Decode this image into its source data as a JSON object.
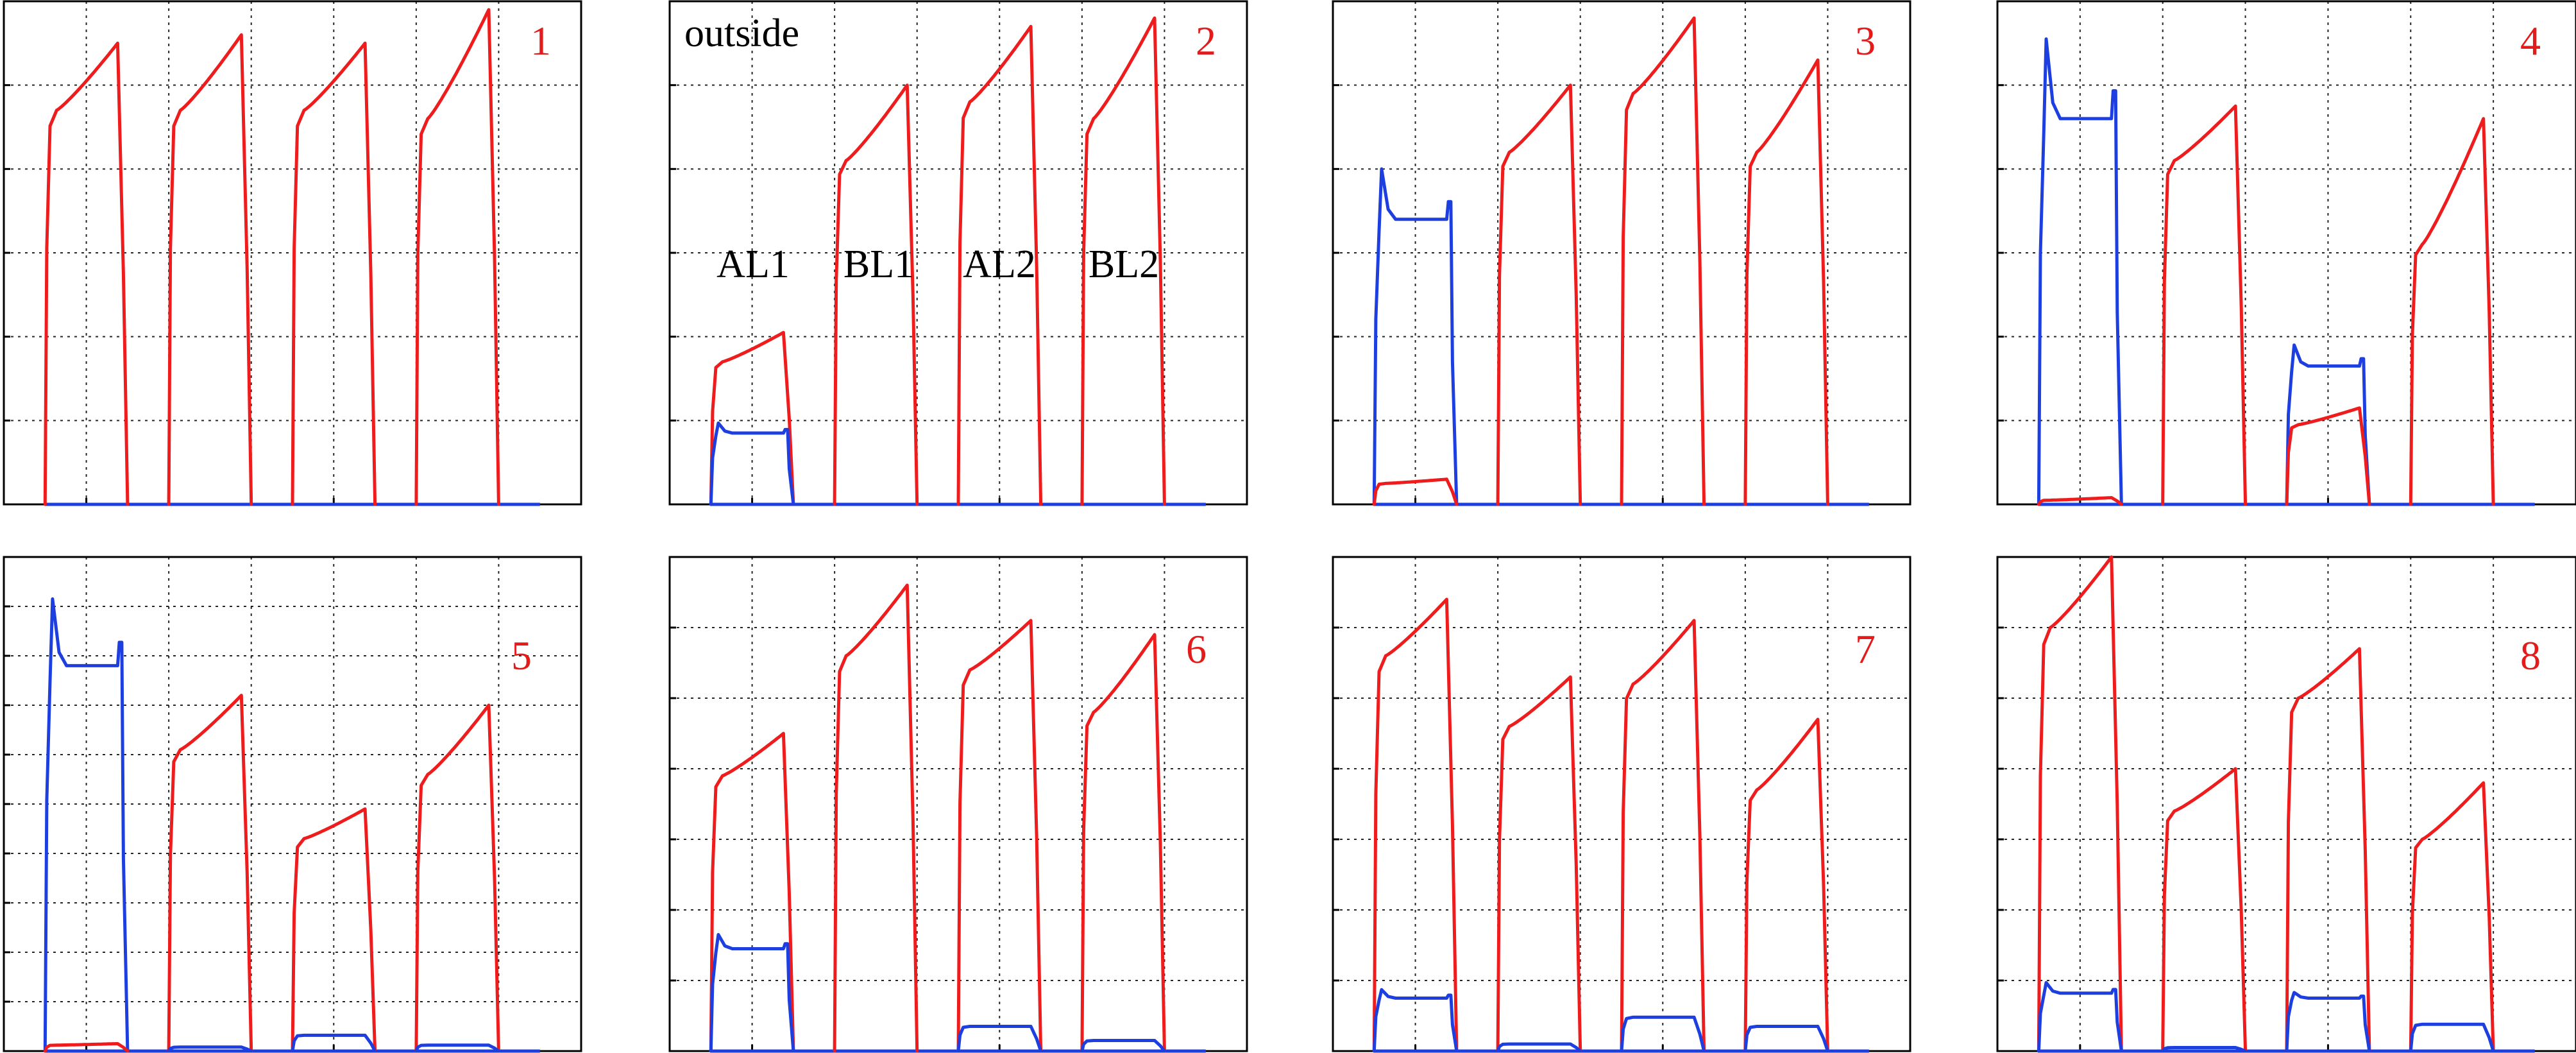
{
  "colors": {
    "red_series": "#ee1c1c",
    "blue_series": "#1d3fe0",
    "panel_number": "#e41b1b",
    "grid": "#000000"
  },
  "chart_data": [
    {
      "type": "line",
      "panel_label": "1",
      "annotations": [],
      "grid": true,
      "xlim": [
        0,
        7
      ],
      "ylim": [
        0,
        6
      ],
      "x_gridlines": [
        1,
        2,
        3,
        4,
        5,
        6
      ],
      "y_gridlines": [
        1,
        2,
        3,
        4,
        5
      ],
      "pulses": [
        {
          "series": "red",
          "x_start": 0.5,
          "x_end": 1.5,
          "level_start": 4.7,
          "level_end": 5.5,
          "overshoot": 0
        },
        {
          "series": "red",
          "x_start": 2.0,
          "x_end": 3.0,
          "level_start": 4.7,
          "level_end": 5.6,
          "overshoot": 0
        },
        {
          "series": "red",
          "x_start": 3.5,
          "x_end": 4.5,
          "level_start": 4.7,
          "level_end": 5.5,
          "overshoot": 0
        },
        {
          "series": "red",
          "x_start": 5.0,
          "x_end": 6.0,
          "level_start": 4.6,
          "level_end": 5.9,
          "overshoot": 0
        }
      ]
    },
    {
      "type": "line",
      "panel_label": "2",
      "grid": true,
      "annotations": [
        {
          "text": "outside",
          "x": 0.2,
          "y": 5.5
        },
        {
          "text": "AL1",
          "x": 1.0,
          "y": 2.8
        },
        {
          "text": "BL1",
          "x": 2.5,
          "y": 2.8
        },
        {
          "text": "AL2",
          "x": 4.0,
          "y": 2.8
        },
        {
          "text": "BL2",
          "x": 5.5,
          "y": 2.8
        }
      ],
      "xlim": [
        0,
        7
      ],
      "ylim": [
        0,
        6
      ],
      "x_gridlines": [
        1,
        2,
        3,
        4,
        5,
        6
      ],
      "y_gridlines": [
        1,
        2,
        3,
        4,
        5
      ],
      "pulses": [
        {
          "series": "red",
          "x_start": 0.5,
          "x_end": 1.5,
          "level_start": 1.7,
          "level_end": 2.05,
          "overshoot": 0
        },
        {
          "series": "blue",
          "x_start": 0.5,
          "x_end": 1.5,
          "level_start": 0.85,
          "level_end": 0.85,
          "overshoot": 0.12
        },
        {
          "series": "red",
          "x_start": 2.0,
          "x_end": 3.0,
          "level_start": 4.1,
          "level_end": 5.0,
          "overshoot": 0
        },
        {
          "series": "red",
          "x_start": 3.5,
          "x_end": 4.5,
          "level_start": 4.8,
          "level_end": 5.7,
          "overshoot": 0
        },
        {
          "series": "red",
          "x_start": 5.0,
          "x_end": 6.0,
          "level_start": 4.6,
          "level_end": 5.8,
          "overshoot": 0
        }
      ]
    },
    {
      "type": "line",
      "panel_label": "3",
      "annotations": [],
      "grid": true,
      "xlim": [
        0,
        7
      ],
      "ylim": [
        0,
        6
      ],
      "x_gridlines": [
        1,
        2,
        3,
        4,
        5,
        6
      ],
      "y_gridlines": [
        1,
        2,
        3,
        4,
        5
      ],
      "pulses": [
        {
          "series": "blue",
          "x_start": 0.5,
          "x_end": 1.5,
          "level_start": 3.4,
          "level_end": 3.4,
          "overshoot": 0.6
        },
        {
          "series": "red",
          "x_start": 0.5,
          "x_end": 1.5,
          "level_start": 0.25,
          "level_end": 0.3,
          "overshoot": 0
        },
        {
          "series": "red",
          "x_start": 2.0,
          "x_end": 3.0,
          "level_start": 4.2,
          "level_end": 5.0,
          "overshoot": 0
        },
        {
          "series": "red",
          "x_start": 3.5,
          "x_end": 4.5,
          "level_start": 4.9,
          "level_end": 5.8,
          "overshoot": 0
        },
        {
          "series": "red",
          "x_start": 5.0,
          "x_end": 6.0,
          "level_start": 4.2,
          "level_end": 5.3,
          "overshoot": 0
        }
      ]
    },
    {
      "type": "line",
      "panel_label": "4",
      "annotations": [],
      "grid": true,
      "xlim": [
        0,
        7
      ],
      "ylim": [
        0,
        6
      ],
      "x_gridlines": [
        1,
        2,
        3,
        4,
        5,
        6
      ],
      "y_gridlines": [
        1,
        2,
        3,
        4,
        5
      ],
      "pulses": [
        {
          "series": "blue",
          "x_start": 0.5,
          "x_end": 1.5,
          "level_start": 4.6,
          "level_end": 4.6,
          "overshoot": 0.95
        },
        {
          "series": "red",
          "x_start": 0.5,
          "x_end": 1.5,
          "level_start": 0.05,
          "level_end": 0.08,
          "overshoot": 0
        },
        {
          "series": "red",
          "x_start": 2.0,
          "x_end": 3.0,
          "level_start": 4.1,
          "level_end": 4.75,
          "overshoot": 0
        },
        {
          "series": "blue",
          "x_start": 3.5,
          "x_end": 4.5,
          "level_start": 1.65,
          "level_end": 1.65,
          "overshoot": 0.25
        },
        {
          "series": "red",
          "x_start": 3.5,
          "x_end": 4.5,
          "level_start": 0.95,
          "level_end": 1.15,
          "overshoot": 0
        },
        {
          "series": "red",
          "x_start": 5.0,
          "x_end": 6.0,
          "level_start": 3.1,
          "level_end": 4.6,
          "overshoot": 0
        }
      ]
    },
    {
      "type": "line",
      "panel_label": "5",
      "annotations": [],
      "grid": true,
      "xlim": [
        0,
        7
      ],
      "ylim": [
        0,
        10
      ],
      "x_gridlines": [
        1,
        2,
        3,
        4,
        5,
        6
      ],
      "y_gridlines": [
        1,
        2,
        3,
        4,
        5,
        6,
        7,
        8,
        9
      ],
      "pulses": [
        {
          "series": "blue",
          "x_start": 0.5,
          "x_end": 1.5,
          "level_start": 7.8,
          "level_end": 7.8,
          "overshoot": 1.35
        },
        {
          "series": "red",
          "x_start": 0.5,
          "x_end": 1.5,
          "level_start": 0.12,
          "level_end": 0.15,
          "overshoot": 0
        },
        {
          "series": "red",
          "x_start": 2.0,
          "x_end": 3.0,
          "level_start": 6.1,
          "level_end": 7.2,
          "overshoot": 0
        },
        {
          "series": "blue",
          "x_start": 2.0,
          "x_end": 3.0,
          "level_start": 0.08,
          "level_end": 0.08,
          "overshoot": 0
        },
        {
          "series": "red",
          "x_start": 3.5,
          "x_end": 4.5,
          "level_start": 4.3,
          "level_end": 4.9,
          "overshoot": 0
        },
        {
          "series": "blue",
          "x_start": 3.5,
          "x_end": 4.5,
          "level_start": 0.32,
          "level_end": 0.32,
          "overshoot": 0
        },
        {
          "series": "red",
          "x_start": 5.0,
          "x_end": 6.0,
          "level_start": 5.6,
          "level_end": 7.0,
          "overshoot": 0
        },
        {
          "series": "blue",
          "x_start": 5.0,
          "x_end": 6.0,
          "level_start": 0.12,
          "level_end": 0.12,
          "overshoot": 0
        }
      ]
    },
    {
      "type": "line",
      "panel_label": "6",
      "annotations": [],
      "grid": true,
      "xlim": [
        0,
        7
      ],
      "ylim": [
        0,
        7
      ],
      "x_gridlines": [
        1,
        2,
        3,
        4,
        5,
        6
      ],
      "y_gridlines": [
        1,
        2,
        3,
        4,
        5,
        6
      ],
      "pulses": [
        {
          "series": "red",
          "x_start": 0.5,
          "x_end": 1.5,
          "level_start": 3.9,
          "level_end": 4.5,
          "overshoot": 0
        },
        {
          "series": "blue",
          "x_start": 0.5,
          "x_end": 1.5,
          "level_start": 1.45,
          "level_end": 1.45,
          "overshoot": 0.2
        },
        {
          "series": "red",
          "x_start": 2.0,
          "x_end": 3.0,
          "level_start": 5.6,
          "level_end": 6.6,
          "overshoot": 0
        },
        {
          "series": "red",
          "x_start": 3.5,
          "x_end": 4.5,
          "level_start": 5.4,
          "level_end": 6.1,
          "overshoot": 0
        },
        {
          "series": "red",
          "x_start": 5.0,
          "x_end": 6.0,
          "level_start": 4.8,
          "level_end": 5.9,
          "overshoot": 0
        },
        {
          "series": "blue",
          "x_start": 3.5,
          "x_end": 4.5,
          "level_start": 0.35,
          "level_end": 0.35,
          "overshoot": 0
        },
        {
          "series": "blue",
          "x_start": 5.0,
          "x_end": 6.0,
          "level_start": 0.15,
          "level_end": 0.15,
          "overshoot": 0
        }
      ]
    },
    {
      "type": "line",
      "panel_label": "7",
      "annotations": [],
      "grid": true,
      "xlim": [
        0,
        7
      ],
      "ylim": [
        0,
        7
      ],
      "x_gridlines": [
        1,
        2,
        3,
        4,
        5,
        6
      ],
      "y_gridlines": [
        1,
        2,
        3,
        4,
        5,
        6
      ],
      "pulses": [
        {
          "series": "red",
          "x_start": 0.5,
          "x_end": 1.5,
          "level_start": 5.6,
          "level_end": 6.4,
          "overshoot": 0
        },
        {
          "series": "blue",
          "x_start": 0.5,
          "x_end": 1.5,
          "level_start": 0.75,
          "level_end": 0.75,
          "overshoot": 0.12
        },
        {
          "series": "red",
          "x_start": 2.0,
          "x_end": 3.0,
          "level_start": 4.6,
          "level_end": 5.3,
          "overshoot": 0
        },
        {
          "series": "blue",
          "x_start": 2.0,
          "x_end": 3.0,
          "level_start": 0.1,
          "level_end": 0.1,
          "overshoot": 0
        },
        {
          "series": "red",
          "x_start": 3.5,
          "x_end": 4.5,
          "level_start": 5.2,
          "level_end": 6.1,
          "overshoot": 0
        },
        {
          "series": "blue",
          "x_start": 3.5,
          "x_end": 4.5,
          "level_start": 0.48,
          "level_end": 0.48,
          "overshoot": 0
        },
        {
          "series": "red",
          "x_start": 5.0,
          "x_end": 6.0,
          "level_start": 3.7,
          "level_end": 4.7,
          "overshoot": 0
        },
        {
          "series": "blue",
          "x_start": 5.0,
          "x_end": 6.0,
          "level_start": 0.35,
          "level_end": 0.35,
          "overshoot": 0
        }
      ]
    },
    {
      "type": "line",
      "panel_label": "8",
      "annotations": [],
      "grid": true,
      "xlim": [
        0,
        7
      ],
      "ylim": [
        0,
        7
      ],
      "x_gridlines": [
        1,
        2,
        3,
        4,
        5,
        6
      ],
      "y_gridlines": [
        1,
        2,
        3,
        4,
        5,
        6
      ],
      "pulses": [
        {
          "series": "red",
          "x_start": 0.5,
          "x_end": 1.5,
          "level_start": 6.0,
          "level_end": 7.0,
          "overshoot": 0
        },
        {
          "series": "blue",
          "x_start": 0.5,
          "x_end": 1.5,
          "level_start": 0.82,
          "level_end": 0.82,
          "overshoot": 0.15
        },
        {
          "series": "red",
          "x_start": 2.0,
          "x_end": 3.0,
          "level_start": 3.4,
          "level_end": 4.0,
          "overshoot": 0
        },
        {
          "series": "blue",
          "x_start": 2.0,
          "x_end": 3.0,
          "level_start": 0.05,
          "level_end": 0.05,
          "overshoot": 0
        },
        {
          "series": "red",
          "x_start": 3.5,
          "x_end": 4.5,
          "level_start": 5.0,
          "level_end": 5.7,
          "overshoot": 0
        },
        {
          "series": "blue",
          "x_start": 3.5,
          "x_end": 4.5,
          "level_start": 0.75,
          "level_end": 0.75,
          "overshoot": 0.08
        },
        {
          "series": "red",
          "x_start": 5.0,
          "x_end": 6.0,
          "level_start": 3.0,
          "level_end": 3.8,
          "overshoot": 0
        },
        {
          "series": "blue",
          "x_start": 5.0,
          "x_end": 6.0,
          "level_start": 0.38,
          "level_end": 0.38,
          "overshoot": 0
        }
      ]
    }
  ]
}
